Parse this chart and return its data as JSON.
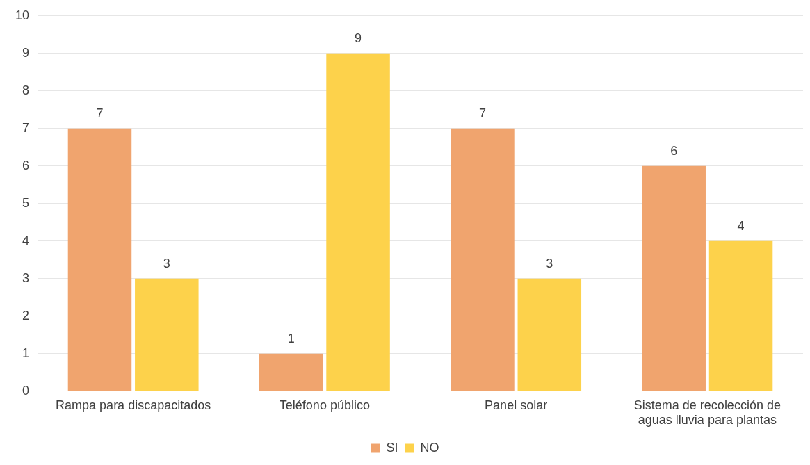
{
  "chart_data": {
    "type": "bar",
    "categories": [
      "Rampa para discapacitados",
      "Teléfono público",
      "Panel solar",
      "Sistema de recolección de aguas lluvia para plantas"
    ],
    "series": [
      {
        "name": "SI",
        "color": "#f0a46e",
        "values": [
          7,
          1,
          7,
          6
        ]
      },
      {
        "name": "NO",
        "color": "#fdd24b",
        "values": [
          3,
          9,
          3,
          4
        ]
      }
    ],
    "ylim": [
      0,
      10
    ],
    "yticks": [
      0,
      1,
      2,
      3,
      4,
      5,
      6,
      7,
      8,
      9,
      10
    ],
    "grid": "y",
    "legend": "bottom",
    "data_labels": true
  }
}
